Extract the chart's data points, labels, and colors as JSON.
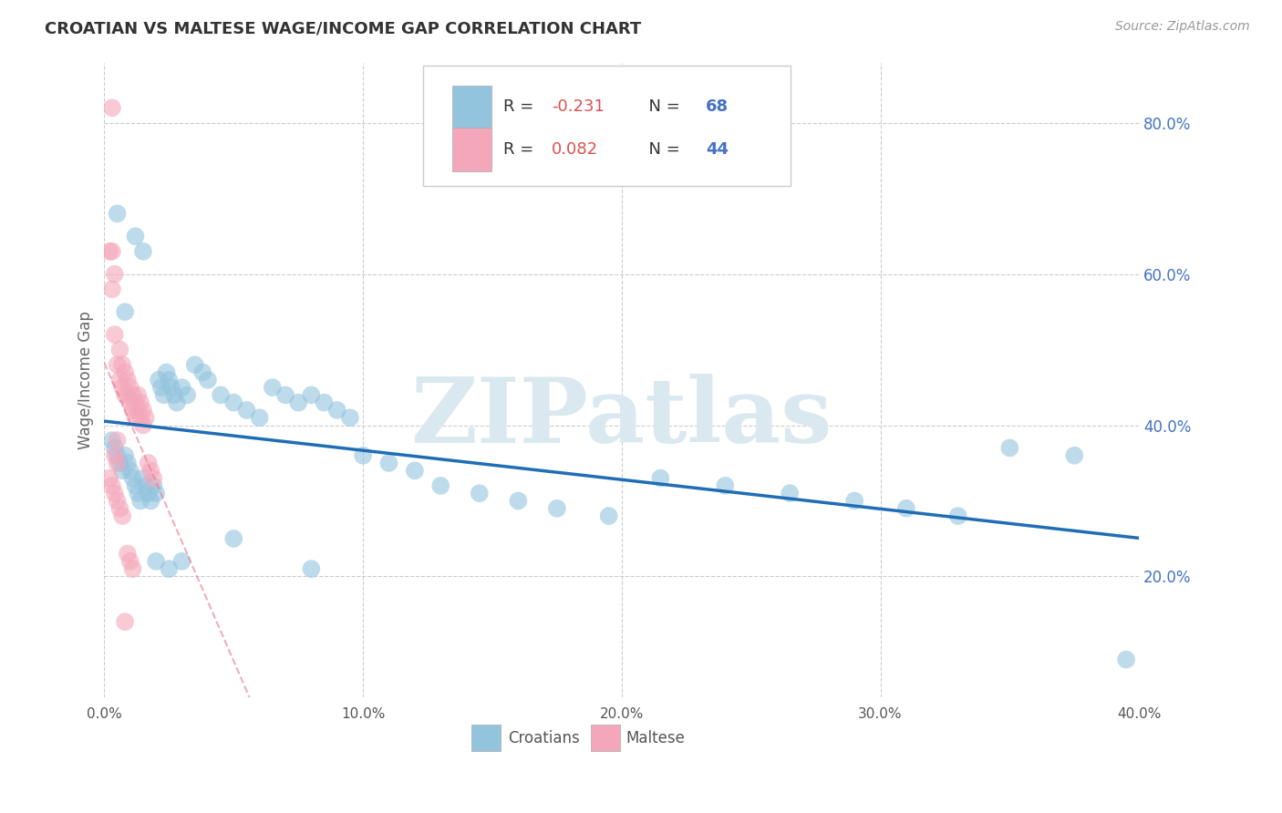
{
  "title": "CROATIAN VS MALTESE WAGE/INCOME GAP CORRELATION CHART",
  "source": "Source: ZipAtlas.com",
  "ylabel": "Wage/Income Gap",
  "xlim": [
    0.0,
    0.4
  ],
  "ylim": [
    0.04,
    0.88
  ],
  "xtick_labels": [
    "0.0%",
    "",
    "",
    "",
    "",
    "10.0%",
    "",
    "",
    "",
    "",
    "20.0%",
    "",
    "",
    "",
    "",
    "30.0%",
    "",
    "",
    "",
    "",
    "40.0%"
  ],
  "xtick_vals": [
    0.0,
    0.02,
    0.04,
    0.06,
    0.08,
    0.1,
    0.12,
    0.14,
    0.16,
    0.18,
    0.2,
    0.22,
    0.24,
    0.26,
    0.28,
    0.3,
    0.32,
    0.34,
    0.36,
    0.38,
    0.4
  ],
  "ytick_labels_right": [
    "20.0%",
    "40.0%",
    "60.0%",
    "80.0%"
  ],
  "ytick_vals_right": [
    0.2,
    0.4,
    0.6,
    0.8
  ],
  "grid_ytick_vals": [
    0.2,
    0.4,
    0.6,
    0.8
  ],
  "croatian_R": -0.231,
  "croatian_N": 68,
  "maltese_R": 0.082,
  "maltese_N": 44,
  "blue_color": "#93c4de",
  "pink_color": "#f4a7bb",
  "blue_line_color": "#1f6eb5",
  "pink_line_color": "#e8778a",
  "watermark_text": "ZIPatlas",
  "watermark_color": "#dae8f0",
  "croatians_label": "Croatians",
  "maltese_label": "Maltese",
  "background_color": "#ffffff",
  "grid_color": "#cccccc",
  "title_color": "#333333",
  "axis_label_color": "#666666",
  "right_tick_color": "#4472c4",
  "legend_R_color": "#333333",
  "legend_N_color": "#4472c4",
  "croatian_scatter_x": [
    0.003,
    0.004,
    0.005,
    0.006,
    0.007,
    0.008,
    0.009,
    0.01,
    0.011,
    0.012,
    0.013,
    0.014,
    0.015,
    0.016,
    0.017,
    0.018,
    0.019,
    0.02,
    0.021,
    0.022,
    0.023,
    0.024,
    0.025,
    0.026,
    0.027,
    0.028,
    0.03,
    0.032,
    0.035,
    0.038,
    0.04,
    0.045,
    0.05,
    0.055,
    0.06,
    0.065,
    0.07,
    0.075,
    0.08,
    0.085,
    0.09,
    0.095,
    0.1,
    0.11,
    0.12,
    0.13,
    0.145,
    0.16,
    0.175,
    0.195,
    0.215,
    0.24,
    0.265,
    0.29,
    0.31,
    0.33,
    0.35,
    0.375,
    0.395,
    0.005,
    0.008,
    0.012,
    0.015,
    0.02,
    0.025,
    0.03,
    0.05,
    0.08
  ],
  "croatian_scatter_y": [
    0.38,
    0.37,
    0.36,
    0.35,
    0.34,
    0.36,
    0.35,
    0.34,
    0.33,
    0.32,
    0.31,
    0.3,
    0.33,
    0.32,
    0.31,
    0.3,
    0.32,
    0.31,
    0.46,
    0.45,
    0.44,
    0.47,
    0.46,
    0.45,
    0.44,
    0.43,
    0.45,
    0.44,
    0.48,
    0.47,
    0.46,
    0.44,
    0.43,
    0.42,
    0.41,
    0.45,
    0.44,
    0.43,
    0.44,
    0.43,
    0.42,
    0.41,
    0.36,
    0.35,
    0.34,
    0.32,
    0.31,
    0.3,
    0.29,
    0.28,
    0.33,
    0.32,
    0.31,
    0.3,
    0.29,
    0.28,
    0.37,
    0.36,
    0.09,
    0.68,
    0.55,
    0.65,
    0.63,
    0.22,
    0.21,
    0.22,
    0.25,
    0.21
  ],
  "maltese_scatter_x": [
    0.002,
    0.003,
    0.004,
    0.005,
    0.006,
    0.007,
    0.008,
    0.009,
    0.01,
    0.011,
    0.012,
    0.013,
    0.014,
    0.015,
    0.016,
    0.017,
    0.018,
    0.019,
    0.003,
    0.004,
    0.005,
    0.006,
    0.007,
    0.008,
    0.009,
    0.01,
    0.011,
    0.012,
    0.013,
    0.014,
    0.015,
    0.003,
    0.004,
    0.005,
    0.002,
    0.003,
    0.004,
    0.005,
    0.006,
    0.007,
    0.008,
    0.009,
    0.01,
    0.011
  ],
  "maltese_scatter_y": [
    0.63,
    0.58,
    0.52,
    0.48,
    0.46,
    0.45,
    0.44,
    0.44,
    0.43,
    0.42,
    0.41,
    0.44,
    0.43,
    0.42,
    0.41,
    0.35,
    0.34,
    0.33,
    0.63,
    0.6,
    0.38,
    0.5,
    0.48,
    0.47,
    0.46,
    0.45,
    0.44,
    0.43,
    0.42,
    0.41,
    0.4,
    0.82,
    0.36,
    0.35,
    0.33,
    0.32,
    0.31,
    0.3,
    0.29,
    0.28,
    0.14,
    0.23,
    0.22,
    0.21
  ]
}
